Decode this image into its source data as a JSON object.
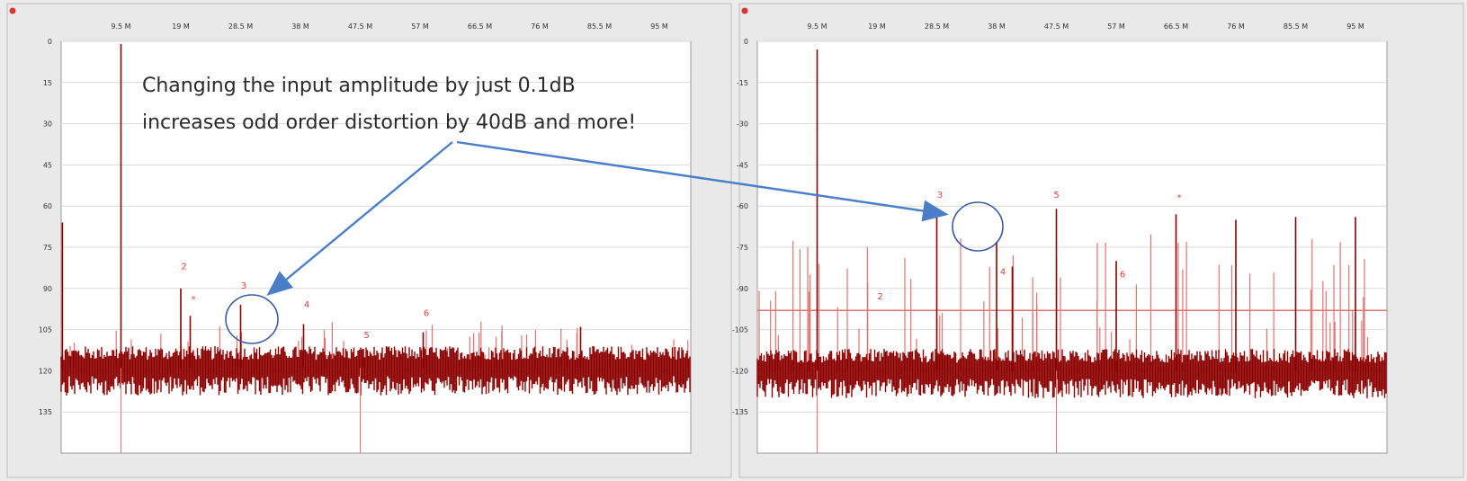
{
  "annotation": {
    "line1": "Changing the input amplitude by just 0.1dB",
    "line2": "increases odd order distortion by 40dB and more!"
  },
  "colors": {
    "trace": "#8b0000",
    "trace_light": "#e27373",
    "arrow": "#4a7fc8",
    "circle": "#3a5aa0",
    "harmonic_label": "#e0403a",
    "plot_bg": "#ffffff",
    "window_bg": "#e9e9e9"
  },
  "icons": {
    "window_marker": "red-dot-icon"
  },
  "chart_data": [
    {
      "type": "line",
      "panel": "left",
      "x_ticks": [
        "9.5 M",
        "19 M",
        "28.5 M",
        "38 M",
        "47.5 M",
        "57 M",
        "66.5 M",
        "76 M",
        "85.5 M",
        "95 M"
      ],
      "y_ticks": [
        "0",
        "15",
        "30",
        "45",
        "60",
        "75",
        "90",
        "105",
        "120",
        "135"
      ],
      "xlim": [
        0,
        100
      ],
      "ylim": [
        0,
        -150
      ],
      "grid": true,
      "noise_floor": -119,
      "spurs": [
        {
          "x": 0.2,
          "y": -66
        },
        {
          "x": 9.5,
          "y": -1
        },
        {
          "x": 19,
          "y": -90
        },
        {
          "x": 20.5,
          "y": -100
        },
        {
          "x": 28.5,
          "y": -96
        },
        {
          "x": 38.5,
          "y": -103
        },
        {
          "x": 48,
          "y": -112
        },
        {
          "x": 57.5,
          "y": -106
        },
        {
          "x": 82.5,
          "y": -104
        }
      ],
      "harmonic_labels": [
        {
          "text": "2",
          "x": 19.5,
          "y": -83
        },
        {
          "text": "*",
          "x": 21,
          "y": -95
        },
        {
          "text": "3",
          "x": 29,
          "y": -90
        },
        {
          "text": "4",
          "x": 39,
          "y": -97
        },
        {
          "text": "5",
          "x": 48.5,
          "y": -108
        },
        {
          "text": "6",
          "x": 58,
          "y": -100
        }
      ]
    },
    {
      "type": "line",
      "panel": "right",
      "x_ticks": [
        "9.5 M",
        "19 M",
        "28.5 M",
        "38 M",
        "47.5 M",
        "57 M",
        "66.5 M",
        "76 M",
        "85.5 M",
        "95 M"
      ],
      "y_ticks": [
        "0",
        "-15",
        "-30",
        "-45",
        "-60",
        "-75",
        "-90",
        "-105",
        "-120",
        "-135"
      ],
      "xlim": [
        0,
        100
      ],
      "ylim": [
        0,
        -150
      ],
      "grid": true,
      "noise_floor": -120,
      "threshold": -98,
      "spurs": [
        {
          "x": 9.5,
          "y": -3
        },
        {
          "x": 28.5,
          "y": -61
        },
        {
          "x": 47.5,
          "y": -61
        },
        {
          "x": 66.5,
          "y": -63
        },
        {
          "x": 76,
          "y": -65
        },
        {
          "x": 85.5,
          "y": -64
        },
        {
          "x": 95,
          "y": -64
        },
        {
          "x": 38,
          "y": -73
        },
        {
          "x": 40.5,
          "y": -82
        },
        {
          "x": 57,
          "y": -80
        }
      ],
      "harmonic_labels": [
        {
          "text": "2",
          "x": 19.5,
          "y": -94
        },
        {
          "text": "3",
          "x": 29,
          "y": -57
        },
        {
          "text": "4",
          "x": 39,
          "y": -85
        },
        {
          "text": "5",
          "x": 47.5,
          "y": -57
        },
        {
          "text": "6",
          "x": 58,
          "y": -86
        },
        {
          "text": "*",
          "x": 67,
          "y": -58
        }
      ]
    }
  ]
}
